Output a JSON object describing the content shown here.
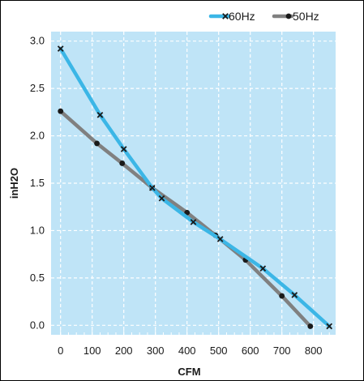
{
  "chart_data": {
    "type": "line",
    "title": "",
    "xlabel": "CFM",
    "ylabel": "inH2O",
    "xlim": [
      -30,
      870
    ],
    "ylim": [
      -0.1,
      3.1
    ],
    "x_ticks": [
      0,
      100,
      200,
      300,
      400,
      500,
      600,
      700,
      800
    ],
    "y_ticks": [
      0.0,
      0.5,
      1.0,
      1.5,
      2.0,
      2.5,
      3.0
    ],
    "x_tick_labels": [
      "0",
      "100",
      "200",
      "300",
      "400",
      "500",
      "600",
      "700",
      "800"
    ],
    "y_tick_labels": [
      "0.0",
      "0.5",
      "1.0",
      "1.5",
      "2.0",
      "2.5",
      "3.0"
    ],
    "grid": true,
    "legend_position": "top-right",
    "background_color": "#bfe4f7",
    "series": [
      {
        "name": "60Hz",
        "color": "#3bb6e6",
        "marker": "x",
        "points": [
          {
            "x": 0,
            "y": 2.92
          },
          {
            "x": 125,
            "y": 2.22
          },
          {
            "x": 200,
            "y": 1.86
          },
          {
            "x": 290,
            "y": 1.45
          },
          {
            "x": 320,
            "y": 1.34
          },
          {
            "x": 420,
            "y": 1.09
          },
          {
            "x": 505,
            "y": 0.91
          },
          {
            "x": 640,
            "y": 0.6
          },
          {
            "x": 740,
            "y": 0.32
          },
          {
            "x": 850,
            "y": -0.01
          }
        ]
      },
      {
        "name": "50Hz",
        "color": "#808080",
        "marker": "dot",
        "points": [
          {
            "x": 0,
            "y": 2.26
          },
          {
            "x": 115,
            "y": 1.92
          },
          {
            "x": 195,
            "y": 1.71
          },
          {
            "x": 290,
            "y": 1.45
          },
          {
            "x": 400,
            "y": 1.19
          },
          {
            "x": 490,
            "y": 0.95
          },
          {
            "x": 585,
            "y": 0.69
          },
          {
            "x": 700,
            "y": 0.31
          },
          {
            "x": 790,
            "y": -0.01
          }
        ]
      }
    ]
  }
}
